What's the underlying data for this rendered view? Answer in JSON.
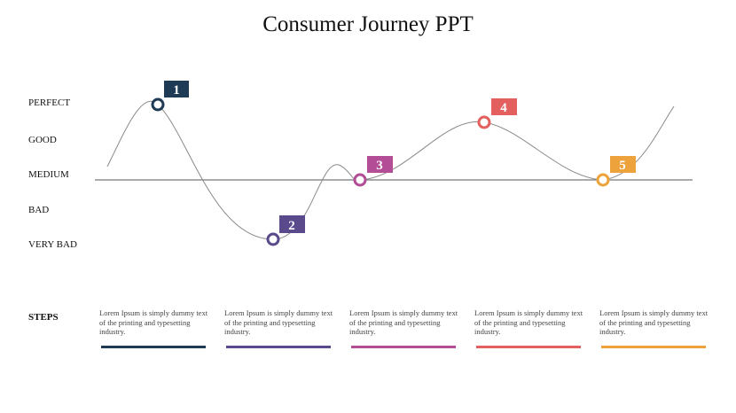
{
  "title": "Consumer Journey PPT",
  "levels": [
    "PERFECT",
    "GOOD",
    "MEDIUM",
    "BAD",
    "VERY BAD"
  ],
  "steps_label": "STEPS",
  "markers": [
    {
      "number": "1",
      "level": "PERFECT",
      "color": "#1f3a55"
    },
    {
      "number": "2",
      "level": "VERY BAD",
      "color": "#5a4a8c"
    },
    {
      "number": "3",
      "level": "MEDIUM",
      "color": "#b24d96"
    },
    {
      "number": "4",
      "level": "GOOD",
      "color": "#e3605f"
    },
    {
      "number": "5",
      "level": "MEDIUM",
      "color": "#eda23c"
    }
  ],
  "steps": [
    {
      "text": "Lorem Ipsum is simply dummy text of the printing  and typesetting  industry.",
      "color": "#1f3a55"
    },
    {
      "text": "Lorem Ipsum is simply dummy text of the printing  and typesetting  industry.",
      "color": "#5a4a8c"
    },
    {
      "text": "Lorem Ipsum is simply dummy text of the printing  and typesetting  industry.",
      "color": "#b24d96"
    },
    {
      "text": "Lorem Ipsum is simply dummy text of the printing  and typesetting  industry.",
      "color": "#e3605f"
    },
    {
      "text": "Lorem Ipsum is simply dummy text of the printing  and typesetting  industry.",
      "color": "#eda23c"
    }
  ]
}
